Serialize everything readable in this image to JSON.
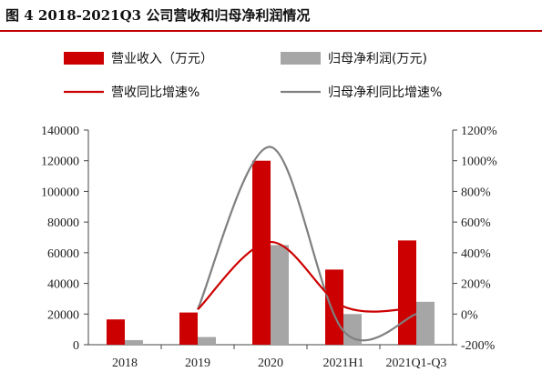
{
  "figure": {
    "title": "图 4  2018-2021Q3 公司营收和归母净利润情况"
  },
  "chart_data": {
    "type": "bar",
    "categories": [
      "2018",
      "2019",
      "2020",
      "2021H1",
      "2021Q1-Q3"
    ],
    "series": [
      {
        "name": "营业收入（万元）",
        "type": "bar",
        "axis": "left",
        "color": "#cc0000",
        "values": [
          16500,
          21000,
          120000,
          49000,
          68000
        ]
      },
      {
        "name": "归母净利润(万元)",
        "type": "bar",
        "axis": "left",
        "color": "#a6a6a6",
        "values": [
          3000,
          5000,
          65000,
          20000,
          28000
        ]
      },
      {
        "name": "营收同比增速%",
        "type": "line",
        "axis": "right",
        "color": "#cc0000",
        "start_index": 1,
        "values": [
          null,
          30,
          470,
          50,
          40
        ]
      },
      {
        "name": "归母净利同比增速%",
        "type": "line",
        "axis": "right",
        "color": "#7f7f7f",
        "start_index": 1,
        "values": [
          null,
          30,
          1090,
          -110,
          0
        ]
      }
    ],
    "y_left": {
      "min": 0,
      "max": 140000,
      "ticks": [
        "0",
        "20000",
        "40000",
        "60000",
        "80000",
        "100000",
        "120000",
        "140000"
      ]
    },
    "y_right": {
      "min": -200,
      "max": 1200,
      "ticks": [
        "-200%",
        "0%",
        "200%",
        "400%",
        "600%",
        "800%",
        "1000%",
        "1200%"
      ]
    },
    "grid": false,
    "legend_position": "top"
  }
}
